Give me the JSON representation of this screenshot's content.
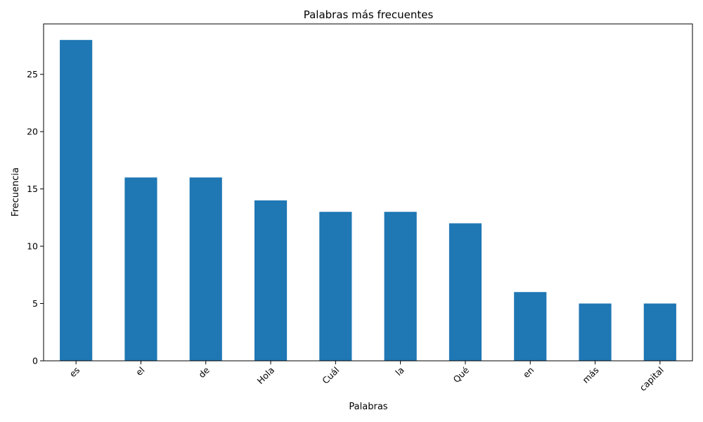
{
  "chart_data": {
    "type": "bar",
    "title": "Palabras más frecuentes",
    "xlabel": "Palabras",
    "ylabel": "Frecuencia",
    "categories": [
      "es",
      "el",
      "de",
      "Hola",
      "Cuál",
      "la",
      "Qué",
      "en",
      "más",
      "capital"
    ],
    "values": [
      28,
      16,
      16,
      14,
      13,
      13,
      12,
      6,
      5,
      5
    ],
    "ylim": [
      0,
      29.4
    ],
    "yticks": [
      0,
      5,
      10,
      15,
      20,
      25
    ],
    "x_tick_rotation_deg": 45,
    "grid": false,
    "legend": "none",
    "bar_color": "#1f77b4"
  }
}
